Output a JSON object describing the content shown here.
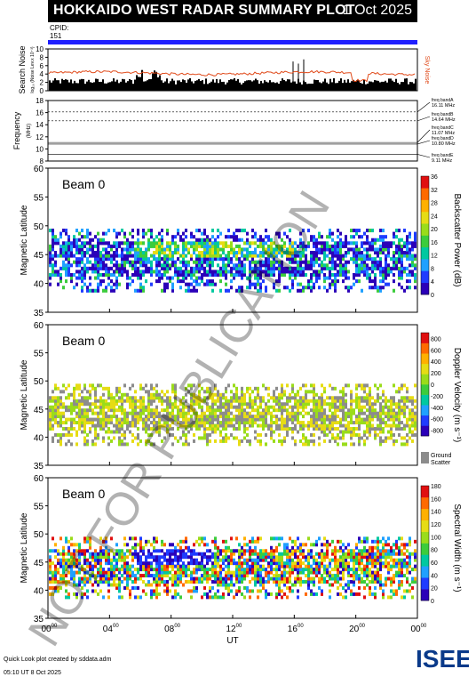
{
  "header": {
    "title": "HOKKAIDO WEST RADAR SUMMARY PLOT",
    "date": "1 Oct 2025",
    "cpid_label": "CPID:",
    "cpid_value": "151"
  },
  "watermark": "NOT FOR PUBLICATION",
  "footer": {
    "credit_line1": "Quick Look plot created by sddata.adm",
    "credit_line2": "05:10 UT  8 Oct 2025",
    "logo_text": "ISEE"
  },
  "chart_data": [
    {
      "type": "line",
      "panel": "search-noise",
      "ylabel": "Search Noise",
      "ylabel_sub": "log₁₀ (Noise Lev.x 10⁻³)",
      "yticks": [
        "0",
        "2",
        "4",
        "6",
        "8",
        "10"
      ],
      "ylim": [
        0,
        10
      ],
      "series_label": "Sky Noise",
      "sky_noise_level": 4.2,
      "colors": {
        "sky_noise": "#e04a1a",
        "search_noise": "#000000"
      }
    },
    {
      "type": "line",
      "panel": "frequency",
      "ylabel": "Frequency",
      "ylabel_sub": "(MHz)",
      "yticks": [
        "8",
        "10",
        "12",
        "14",
        "16",
        "18"
      ],
      "ylim": [
        8,
        18
      ],
      "bands": [
        {
          "label": "freq bandA",
          "value": "16.11 MHz",
          "mhz": 16.11
        },
        {
          "label": "freq bandB",
          "value": "14.64 MHz",
          "mhz": 14.64
        },
        {
          "label": "freq bandC",
          "value": "11.07 MHz",
          "mhz": 11.07
        },
        {
          "label": "freq bandD",
          "value": "10.80 MHz",
          "mhz": 10.8
        },
        {
          "label": "freq bandE",
          "value": "9.11 MHz",
          "mhz": 9.11
        }
      ]
    },
    {
      "type": "heatmap",
      "panel": "power",
      "beam_label": "Beam  0",
      "ylabel": "Magnetic Latitude",
      "yticks": [
        "35",
        "40",
        "45",
        "50",
        "55",
        "60"
      ],
      "ylim": [
        35,
        60
      ],
      "colorbar_label": "Backscatter Power (dB)",
      "colorbar_ticks": [
        "0",
        "4",
        "8",
        "12",
        "16",
        "20",
        "24",
        "28",
        "32",
        "36"
      ],
      "colorbar_colors": [
        "#2b00b8",
        "#1f3cff",
        "#1fa0ff",
        "#00c8a0",
        "#3ccc3c",
        "#9adc1a",
        "#e6dc14",
        "#ffb000",
        "#ff6a00",
        "#e01010"
      ]
    },
    {
      "type": "heatmap",
      "panel": "velocity",
      "beam_label": "Beam  0",
      "ylabel": "Magnetic Latitude",
      "yticks": [
        "35",
        "40",
        "45",
        "50",
        "55",
        "60"
      ],
      "ylim": [
        35,
        60
      ],
      "colorbar_label": "Doppler Velocity (m s⁻¹)",
      "colorbar_ticks": [
        "800",
        "600",
        "400",
        "200",
        "0",
        "-200",
        "-400",
        "-600",
        "-800"
      ],
      "colorbar_colors": [
        "#2b00b8",
        "#1f3cff",
        "#1fa0ff",
        "#00c8a0",
        "#3ccc3c",
        "#9adc1a",
        "#e6dc14",
        "#ffb000",
        "#ff6a00",
        "#e01010"
      ],
      "ground_scatter_label": "Ground Scatter",
      "ground_scatter_color": "#8c8c8c"
    },
    {
      "type": "heatmap",
      "panel": "width",
      "beam_label": "Beam  0",
      "ylabel": "Magnetic Latitude",
      "yticks": [
        "35",
        "40",
        "45",
        "50",
        "55",
        "60"
      ],
      "ylim": [
        35,
        60
      ],
      "colorbar_label": "Spectral Width (m s⁻¹)",
      "colorbar_ticks": [
        "0",
        "20",
        "40",
        "60",
        "80",
        "100",
        "120",
        "140",
        "160",
        "180"
      ],
      "colorbar_colors": [
        "#2b00b8",
        "#1f3cff",
        "#1fa0ff",
        "#00c8a0",
        "#3ccc3c",
        "#9adc1a",
        "#e6dc14",
        "#ffb000",
        "#ff6a00",
        "#e01010"
      ]
    }
  ],
  "xaxis": {
    "label": "UT",
    "ticks": [
      {
        "h": "00",
        "m": "00"
      },
      {
        "h": "04",
        "m": "00"
      },
      {
        "h": "08",
        "m": "00"
      },
      {
        "h": "12",
        "m": "00"
      },
      {
        "h": "16",
        "m": "00"
      },
      {
        "h": "20",
        "m": "00"
      },
      {
        "h": "00",
        "m": "00"
      }
    ]
  }
}
